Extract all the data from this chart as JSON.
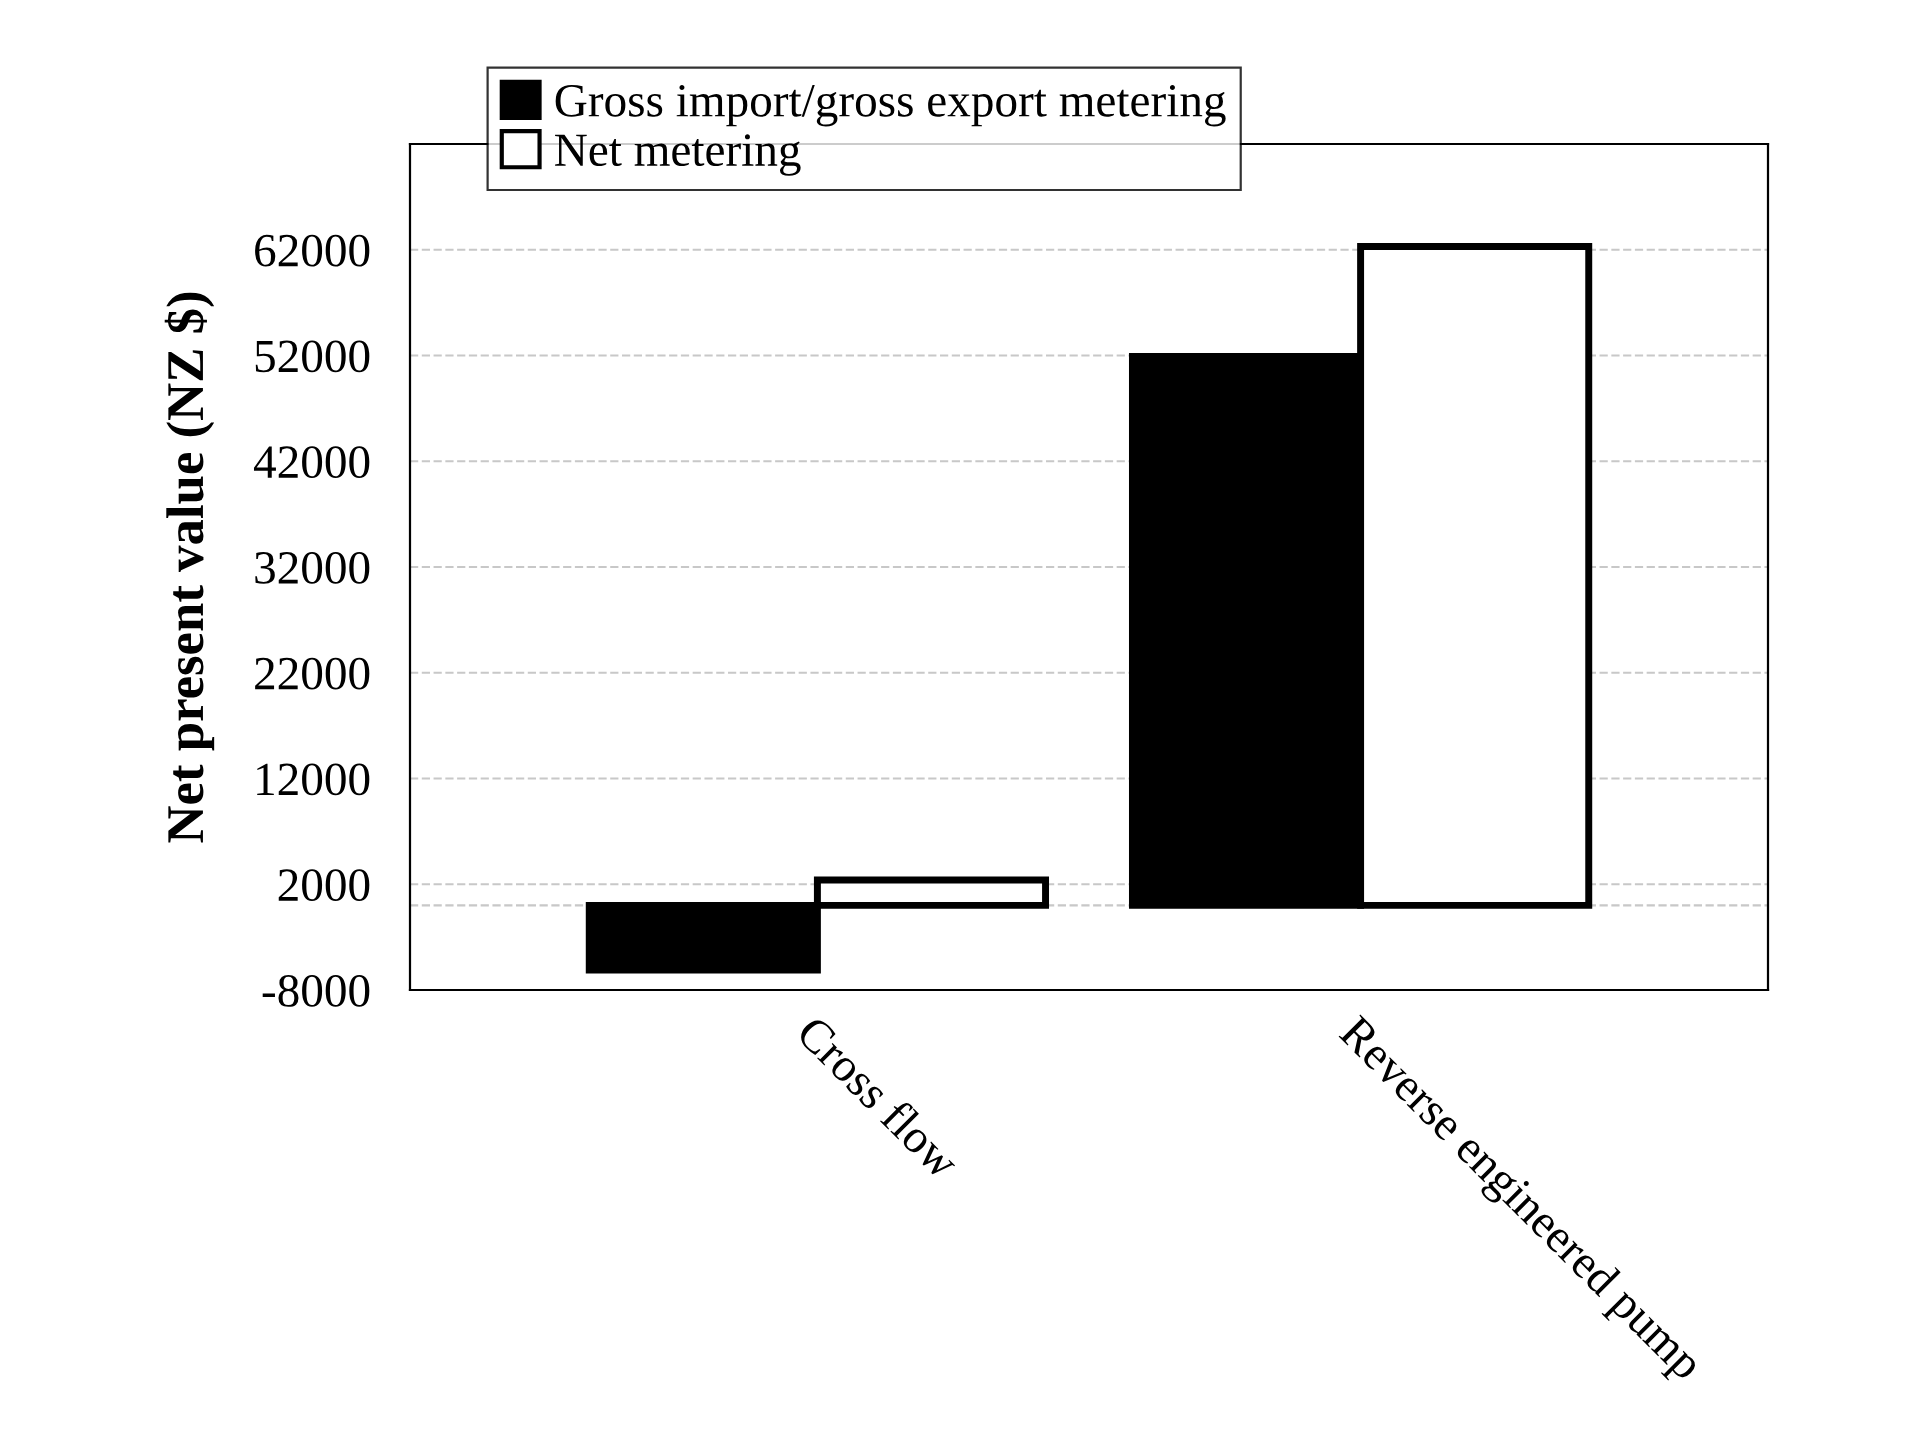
{
  "chart_data": {
    "type": "bar",
    "ylabel": "Net present value (NZ $)",
    "categories": [
      "Cross flow",
      "Reverse engineered pump"
    ],
    "series": [
      {
        "name": "Gross import/gross export metering",
        "color": "#000000",
        "values": [
          -6100,
          51900
        ]
      },
      {
        "name": "Net metering",
        "color": "#ffffff",
        "values": [
          2400,
          62300
        ]
      }
    ],
    "ylim": [
      -8000,
      72000
    ],
    "yticks": [
      -8000,
      2000,
      12000,
      22000,
      32000,
      42000,
      52000,
      62000
    ],
    "grid": "y",
    "legend": "top"
  }
}
